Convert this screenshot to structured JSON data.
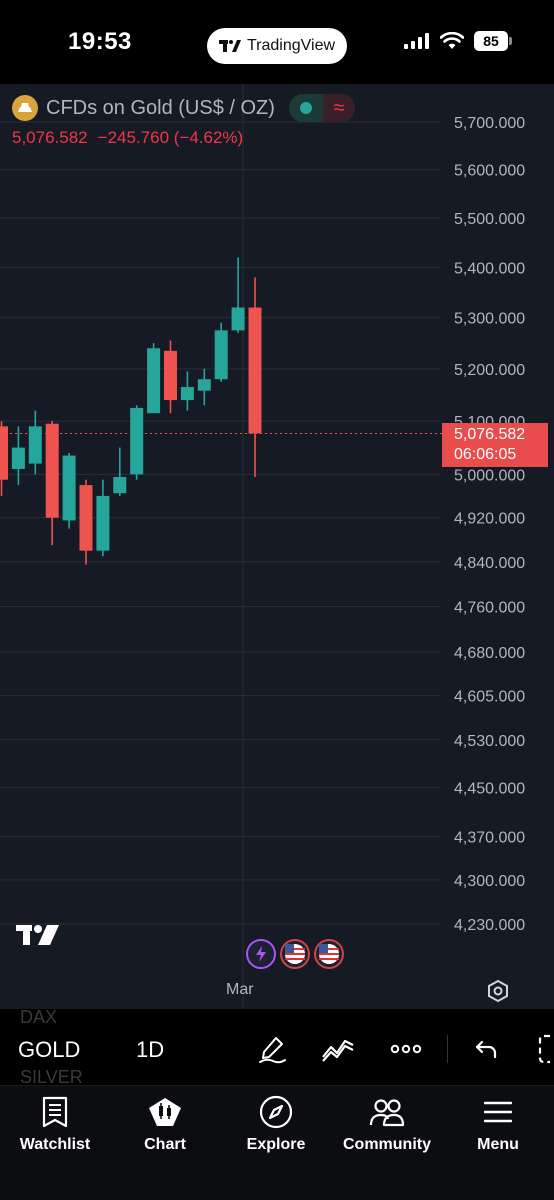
{
  "status_bar": {
    "time": "19:53",
    "app_pill": "TradingView",
    "battery": "85"
  },
  "legend": {
    "title": "CFDs on Gold (US$ / OZ)",
    "price": "5,076.582",
    "change": "−245.760 (−4.62%)",
    "approx_symbol": "≈"
  },
  "price_tag": {
    "price": "5,076.582",
    "countdown": "06:06:05"
  },
  "colors": {
    "up": "#26a69a",
    "down": "#ef5350",
    "background": "#161a25",
    "grid": "#2a2e39",
    "axis_text": "#b2b5be"
  },
  "chart_data": {
    "type": "candlestick",
    "title": "CFDs on Gold (US$ / OZ)",
    "interval": "1D",
    "y_ticks": [
      "5,700.000",
      "5,600.000",
      "5,500.000",
      "5,400.000",
      "5,300.000",
      "5,200.000",
      "5,100.000",
      "5,000.000",
      "4,920.000",
      "4,840.000",
      "4,760.000",
      "4,680.000",
      "4,605.000",
      "4,530.000",
      "4,450.000",
      "4,370.000",
      "4,300.000",
      "4,230.000"
    ],
    "y_tick_values": [
      5700,
      5600,
      5500,
      5400,
      5300,
      5200,
      5100,
      5000,
      4920,
      4840,
      4760,
      4680,
      4605,
      4530,
      4450,
      4370,
      4300,
      4230
    ],
    "y_scale": "log",
    "x_ticks": [
      "Mar"
    ],
    "current_price": 5076.582,
    "candles": [
      {
        "open": 5090,
        "high": 5100,
        "low": 4960,
        "close": 4990
      },
      {
        "open": 5010,
        "high": 5090,
        "low": 4980,
        "close": 5050
      },
      {
        "open": 5020,
        "high": 5120,
        "low": 5000,
        "close": 5090
      },
      {
        "open": 5095,
        "high": 5100,
        "low": 4870,
        "close": 4920
      },
      {
        "open": 4915,
        "high": 5040,
        "low": 4900,
        "close": 5035
      },
      {
        "open": 4980,
        "high": 4990,
        "low": 4835,
        "close": 4860
      },
      {
        "open": 4860,
        "high": 4990,
        "low": 4850,
        "close": 4960
      },
      {
        "open": 4965,
        "high": 5050,
        "low": 4960,
        "close": 4995
      },
      {
        "open": 5000,
        "high": 5130,
        "low": 4990,
        "close": 5125
      },
      {
        "open": 5115,
        "high": 5250,
        "low": 5115,
        "close": 5240
      },
      {
        "open": 5235,
        "high": 5255,
        "low": 5115,
        "close": 5140
      },
      {
        "open": 5140,
        "high": 5195,
        "low": 5120,
        "close": 5165
      },
      {
        "open": 5158,
        "high": 5200,
        "low": 5130,
        "close": 5180
      },
      {
        "open": 5180,
        "high": 5290,
        "low": 5175,
        "close": 5275
      },
      {
        "open": 5275,
        "high": 5420,
        "low": 5270,
        "close": 5320
      },
      {
        "open": 5320,
        "high": 5380,
        "low": 4995,
        "close": 5076.582
      }
    ]
  },
  "axis": {
    "date_label": "Mar"
  },
  "toolbar": {
    "symbol_prev": "DAX",
    "symbol": "GOLD",
    "symbol_next": "SILVER",
    "interval": "1D"
  },
  "tabs": [
    {
      "label": "Watchlist",
      "icon": "watchlist-icon"
    },
    {
      "label": "Chart",
      "icon": "chart-icon"
    },
    {
      "label": "Explore",
      "icon": "compass-icon"
    },
    {
      "label": "Community",
      "icon": "community-icon"
    },
    {
      "label": "Menu",
      "icon": "menu-icon"
    }
  ]
}
